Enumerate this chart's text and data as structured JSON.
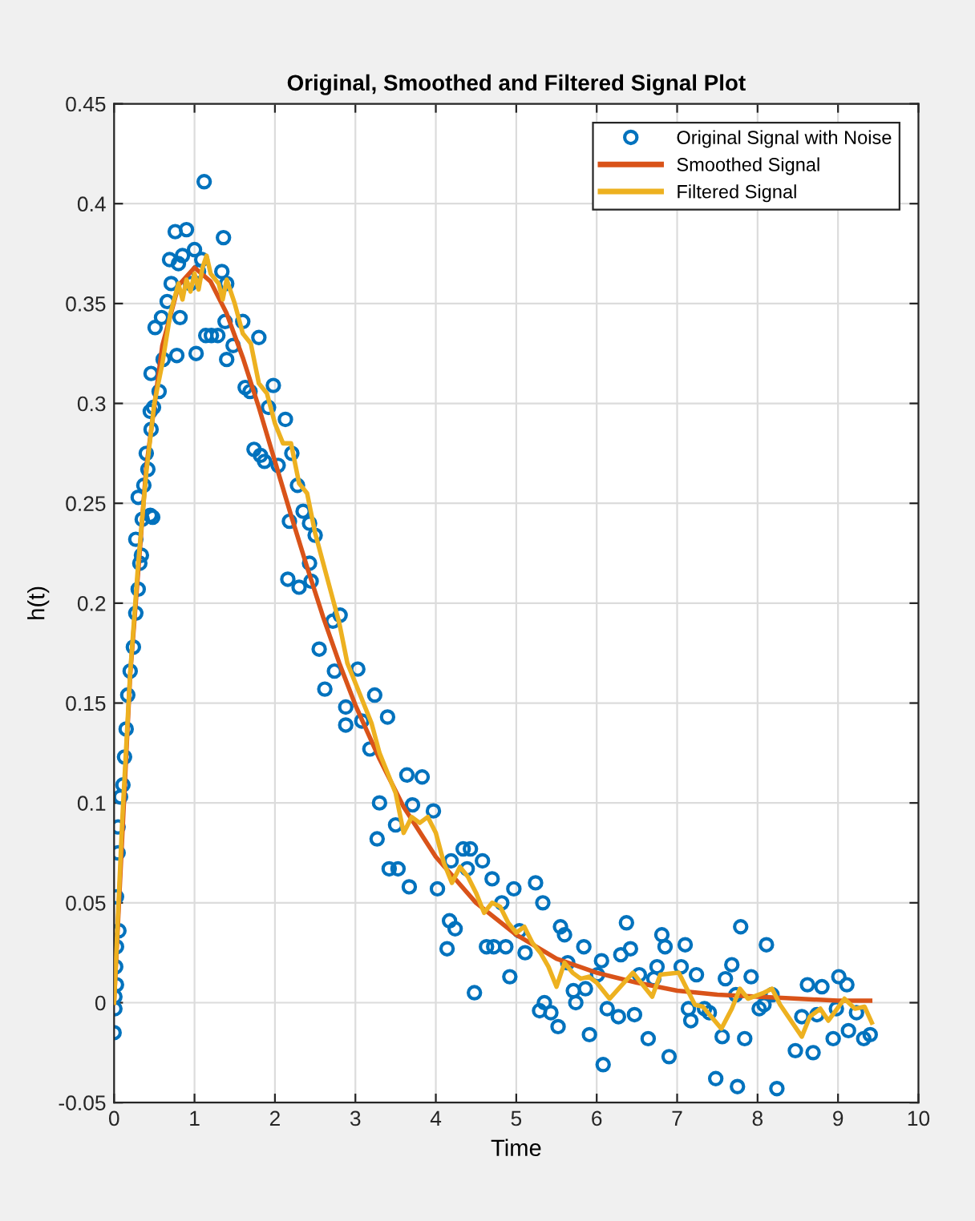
{
  "chart_data": {
    "type": "scatter",
    "title": "Original, Smoothed and Filtered Signal Plot",
    "xlabel": "Time",
    "ylabel": "h(t)",
    "xlim": [
      0,
      10
    ],
    "xticks": [
      0,
      1,
      2,
      3,
      4,
      5,
      6,
      7,
      8,
      9,
      10
    ],
    "ylim": [
      -0.05,
      0.45
    ],
    "yticks": [
      -0.05,
      0,
      0.05,
      0.1,
      0.15,
      0.2,
      0.25,
      0.3,
      0.35,
      0.4,
      0.45
    ],
    "grid": true,
    "legend": "top right",
    "marker": "circle",
    "series": [
      {
        "name": "Original Signal with Noise",
        "color": "#0072bd",
        "x": [
          0.0,
          0.01,
          0.01,
          0.02,
          0.03,
          0.03,
          0.03,
          0.05,
          0.05,
          0.06,
          0.08,
          0.11,
          0.13,
          0.15,
          0.17,
          0.2,
          0.24,
          0.27,
          0.27,
          0.3,
          0.3,
          0.32,
          0.34,
          0.35,
          0.37,
          0.4,
          0.42,
          0.45,
          0.45,
          0.46,
          0.46,
          0.48,
          0.49,
          0.51,
          0.56,
          0.59,
          0.61,
          0.66,
          0.69,
          0.71,
          0.76,
          0.78,
          0.8,
          0.82,
          0.85,
          0.9,
          0.95,
          1.0,
          1.02,
          1.05,
          1.09,
          1.12,
          1.14,
          1.21,
          1.29,
          1.34,
          1.36,
          1.38,
          1.4,
          1.4,
          1.48,
          1.6,
          1.63,
          1.69,
          1.74,
          1.8,
          1.82,
          1.87,
          1.92,
          1.98,
          2.04,
          2.13,
          2.16,
          2.18,
          2.21,
          2.28,
          2.3,
          2.35,
          2.43,
          2.43,
          2.45,
          2.5,
          2.55,
          2.62,
          2.72,
          2.74,
          2.81,
          2.88,
          2.88,
          3.03,
          3.08,
          3.18,
          3.24,
          3.27,
          3.3,
          3.4,
          3.42,
          3.5,
          3.53,
          3.64,
          3.67,
          3.71,
          3.83,
          3.97,
          4.02,
          4.14,
          4.17,
          4.19,
          4.24,
          4.34,
          4.39,
          4.43,
          4.48,
          4.58,
          4.63,
          4.7,
          4.72,
          4.82,
          4.87,
          4.92,
          4.97,
          5.04,
          5.11,
          5.24,
          5.29,
          5.33,
          5.35,
          5.43,
          5.52,
          5.55,
          5.6,
          5.64,
          5.71,
          5.74,
          5.84,
          5.86,
          5.91,
          6.01,
          6.06,
          6.08,
          6.13,
          6.27,
          6.3,
          6.37,
          6.42,
          6.47,
          6.53,
          6.64,
          6.71,
          6.75,
          6.81,
          6.85,
          6.9,
          7.05,
          7.1,
          7.14,
          7.17,
          7.24,
          7.34,
          7.4,
          7.48,
          7.56,
          7.6,
          7.68,
          7.73,
          7.75,
          7.79,
          7.84,
          7.92,
          8.02,
          8.08,
          8.11,
          8.18,
          8.24,
          8.47,
          8.55,
          8.62,
          8.69,
          8.74,
          8.8,
          8.94,
          8.98,
          9.01,
          9.11,
          9.13,
          9.23,
          9.32,
          9.4
        ],
        "values": [
          -0.015,
          -0.003,
          0.003,
          0.018,
          0.009,
          0.028,
          0.053,
          0.075,
          0.088,
          0.036,
          0.103,
          0.109,
          0.123,
          0.137,
          0.154,
          0.166,
          0.178,
          0.195,
          0.232,
          0.207,
          0.253,
          0.22,
          0.224,
          0.242,
          0.259,
          0.275,
          0.267,
          0.244,
          0.296,
          0.287,
          0.315,
          0.243,
          0.298,
          0.338,
          0.306,
          0.343,
          0.322,
          0.351,
          0.372,
          0.36,
          0.386,
          0.324,
          0.37,
          0.343,
          0.374,
          0.387,
          0.36,
          0.377,
          0.325,
          0.366,
          0.372,
          0.411,
          0.334,
          0.334,
          0.334,
          0.366,
          0.383,
          0.341,
          0.36,
          0.322,
          0.329,
          0.341,
          0.308,
          0.306,
          0.277,
          0.333,
          0.274,
          0.271,
          0.298,
          0.309,
          0.269,
          0.292,
          0.212,
          0.241,
          0.275,
          0.259,
          0.208,
          0.246,
          0.24,
          0.22,
          0.211,
          0.234,
          0.177,
          0.157,
          0.191,
          0.166,
          0.194,
          0.139,
          0.148,
          0.167,
          0.141,
          0.127,
          0.154,
          0.082,
          0.1,
          0.143,
          0.067,
          0.089,
          0.067,
          0.114,
          0.058,
          0.099,
          0.113,
          0.096,
          0.057,
          0.027,
          0.041,
          0.071,
          0.037,
          0.077,
          0.067,
          0.077,
          0.005,
          0.071,
          0.028,
          0.062,
          0.028,
          0.05,
          0.028,
          0.013,
          0.057,
          0.036,
          0.025,
          0.06,
          -0.004,
          0.05,
          0.0,
          -0.005,
          -0.012,
          0.038,
          0.034,
          0.02,
          0.006,
          0.0,
          0.028,
          0.007,
          -0.016,
          0.014,
          0.021,
          -0.031,
          -0.003,
          -0.007,
          0.024,
          0.04,
          0.027,
          -0.006,
          0.014,
          -0.018,
          0.012,
          0.018,
          0.034,
          0.028,
          -0.027,
          0.018,
          0.029,
          -0.003,
          -0.009,
          0.014,
          -0.003,
          -0.005,
          -0.038,
          -0.017,
          0.012,
          0.019,
          0.004,
          -0.042,
          0.038,
          -0.018,
          0.013,
          -0.003,
          -0.001,
          0.029,
          0.004,
          -0.043,
          -0.024,
          -0.007,
          0.009,
          -0.025,
          -0.006,
          0.008,
          -0.018,
          -0.003,
          0.013,
          0.009,
          -0.014,
          -0.005,
          -0.018,
          -0.016
        ]
      },
      {
        "name": "Smoothed Signal",
        "type": "line",
        "marker": "none",
        "line_style": "solid",
        "color": "#d95319",
        "x": [
          0,
          0.2,
          0.4,
          0.6,
          0.8,
          1.0,
          1.2,
          1.4,
          1.6,
          1.8,
          2.0,
          2.2,
          2.4,
          2.6,
          2.8,
          3.0,
          3.3,
          3.6,
          4.0,
          4.5,
          5.0,
          5.5,
          6.0,
          6.5,
          7.0,
          7.5,
          8.0,
          8.5,
          9.0,
          9.4
        ],
        "values": [
          0,
          0.164,
          0.268,
          0.329,
          0.359,
          0.368,
          0.361,
          0.345,
          0.323,
          0.298,
          0.271,
          0.244,
          0.218,
          0.193,
          0.17,
          0.149,
          0.122,
          0.098,
          0.073,
          0.05,
          0.034,
          0.022,
          0.015,
          0.01,
          0.006,
          0.004,
          0.003,
          0.002,
          0.001,
          0.001
        ]
      },
      {
        "name": "Filtered Signal",
        "type": "line",
        "marker": "none",
        "line_style": "solid",
        "color": "#edb120",
        "x": [
          0,
          0.1,
          0.2,
          0.3,
          0.4,
          0.5,
          0.6,
          0.7,
          0.8,
          0.85,
          0.9,
          0.95,
          1.0,
          1.05,
          1.1,
          1.15,
          1.2,
          1.3,
          1.35,
          1.4,
          1.5,
          1.6,
          1.7,
          1.8,
          1.9,
          2.0,
          2.1,
          2.2,
          2.3,
          2.4,
          2.5,
          2.6,
          2.7,
          2.8,
          2.9,
          3.0,
          3.1,
          3.2,
          3.3,
          3.4,
          3.5,
          3.55,
          3.6,
          3.7,
          3.8,
          3.9,
          4.0,
          4.1,
          4.2,
          4.3,
          4.4,
          4.5,
          4.6,
          4.7,
          4.8,
          4.9,
          5.0,
          5.1,
          5.2,
          5.3,
          5.4,
          5.5,
          5.6,
          5.7,
          5.8,
          5.9,
          6.0,
          6.16,
          6.45,
          6.69,
          6.79,
          7.02,
          7.22,
          7.32,
          7.55,
          7.68,
          7.78,
          7.88,
          8.08,
          8.18,
          8.28,
          8.55,
          8.65,
          8.78,
          8.88,
          9.08,
          9.21,
          9.33,
          9.42
        ],
        "values": [
          0,
          0.09,
          0.165,
          0.22,
          0.265,
          0.3,
          0.32,
          0.345,
          0.36,
          0.352,
          0.362,
          0.356,
          0.365,
          0.357,
          0.368,
          0.374,
          0.365,
          0.36,
          0.352,
          0.362,
          0.35,
          0.335,
          0.33,
          0.31,
          0.305,
          0.29,
          0.28,
          0.28,
          0.26,
          0.255,
          0.235,
          0.22,
          0.205,
          0.19,
          0.17,
          0.16,
          0.15,
          0.14,
          0.125,
          0.115,
          0.105,
          0.095,
          0.085,
          0.093,
          0.09,
          0.093,
          0.085,
          0.07,
          0.06,
          0.068,
          0.063,
          0.055,
          0.045,
          0.05,
          0.048,
          0.04,
          0.035,
          0.038,
          0.03,
          0.025,
          0.018,
          0.008,
          0.02,
          0.015,
          0.012,
          0.013,
          0.01,
          0.002,
          0.015,
          0.003,
          0.014,
          0.015,
          -0.001,
          -0.002,
          -0.013,
          -0.003,
          0.007,
          0.002,
          0.005,
          0.007,
          -0.001,
          -0.017,
          -0.007,
          -0.003,
          -0.009,
          0.002,
          -0.003,
          -0.002,
          -0.01
        ]
      }
    ]
  }
}
